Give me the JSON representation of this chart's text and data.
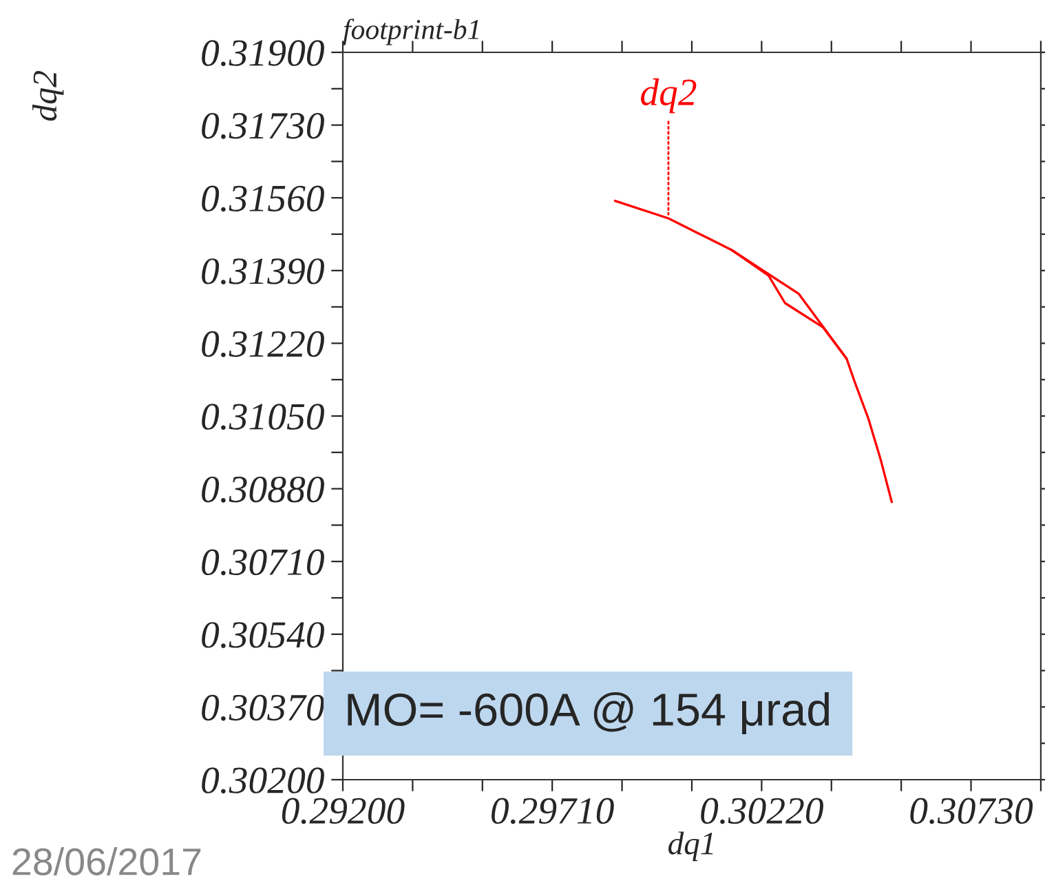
{
  "chart_data": {
    "type": "line",
    "title": "footprint-b1",
    "xlabel": "dq1",
    "ylabel": "dq2",
    "series": [
      {
        "color": "#ff0000",
        "x": [
          0.29863,
          0.29993,
          0.30093,
          0.30147,
          0.3031,
          0.30427,
          0.30447,
          0.3048,
          0.3051,
          0.30537
        ],
        "values": [
          0.31553,
          0.31512,
          0.31464,
          0.31438,
          0.31336,
          0.31184,
          0.31129,
          0.31044,
          0.30948,
          0.30849
        ]
      },
      {
        "color": "#ff0000",
        "x": [
          0.30147,
          0.30237,
          0.30277,
          0.3037,
          0.30427
        ],
        "values": [
          0.31438,
          0.31378,
          0.31314,
          0.31257,
          0.31184
        ]
      }
    ],
    "annotations": [
      {
        "text": "dq2",
        "x": 0.29993,
        "y": 0.31512
      },
      "MO= -600A @ 154 μrad",
      "28/06/2017"
    ],
    "xlim": [
      0.292,
      0.309
    ],
    "ylim": [
      0.302,
      0.319
    ],
    "xticks": [
      {
        "value": 0.292,
        "label": "0.29200"
      },
      {
        "value": 0.2937,
        "label": null
      },
      {
        "value": 0.2954,
        "label": null
      },
      {
        "value": 0.2971,
        "label": "0.29710"
      },
      {
        "value": 0.2988,
        "label": null
      },
      {
        "value": 0.3005,
        "label": null
      },
      {
        "value": 0.3022,
        "label": "0.30220"
      },
      {
        "value": 0.3039,
        "label": null
      },
      {
        "value": 0.3056,
        "label": null
      },
      {
        "value": 0.3073,
        "label": "0.30730"
      },
      {
        "value": 0.309,
        "label": null
      }
    ],
    "yticks": [
      {
        "value": 0.302,
        "label": "0.30200"
      },
      {
        "value": 0.30285,
        "label": null
      },
      {
        "value": 0.3037,
        "label": "0.30370"
      },
      {
        "value": 0.30455,
        "label": null
      },
      {
        "value": 0.3054,
        "label": "0.30540"
      },
      {
        "value": 0.30625,
        "label": null
      },
      {
        "value": 0.3071,
        "label": "0.30710"
      },
      {
        "value": 0.30795,
        "label": null
      },
      {
        "value": 0.3088,
        "label": "0.30880"
      },
      {
        "value": 0.30965,
        "label": null
      },
      {
        "value": 0.3105,
        "label": "0.31050"
      },
      {
        "value": 0.31135,
        "label": null
      },
      {
        "value": 0.3122,
        "label": "0.31220"
      },
      {
        "value": 0.31305,
        "label": null
      },
      {
        "value": 0.3139,
        "label": "0.31390"
      },
      {
        "value": 0.31475,
        "label": null
      },
      {
        "value": 0.3156,
        "label": "0.31560"
      },
      {
        "value": 0.31645,
        "label": null
      },
      {
        "value": 0.3173,
        "label": "0.31730"
      },
      {
        "value": 0.31815,
        "label": null
      },
      {
        "value": 0.319,
        "label": "0.31900"
      }
    ],
    "grid": false,
    "legend": false,
    "marker": "none",
    "line_style": "solid"
  }
}
